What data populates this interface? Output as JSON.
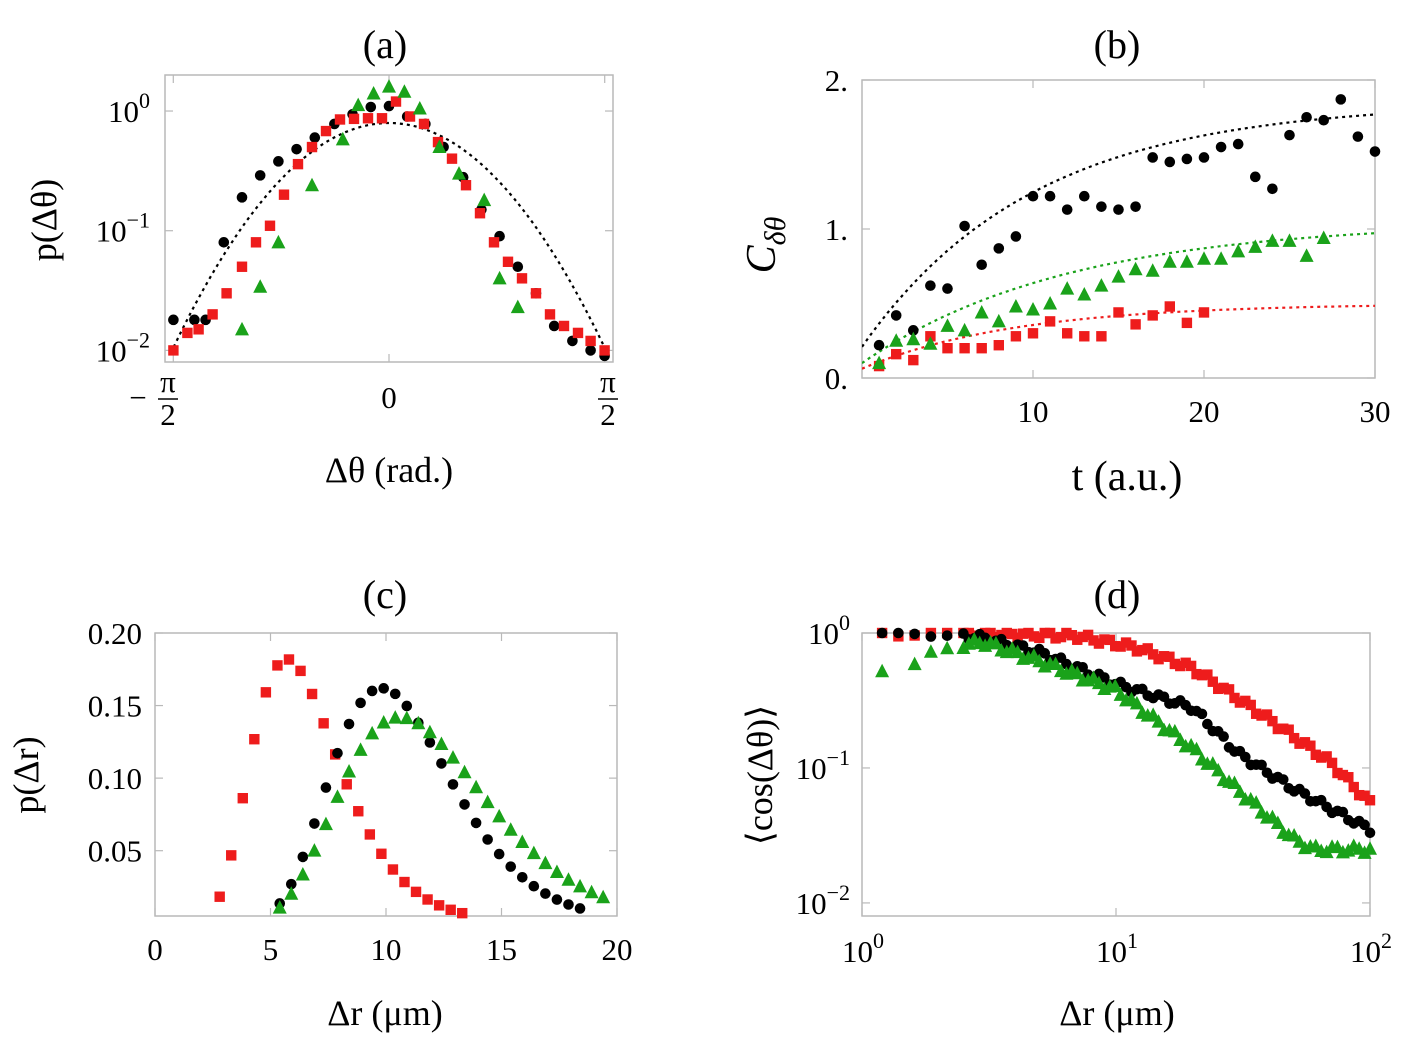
{
  "colors": {
    "black": "#000000",
    "red": "#ee1c1c",
    "green": "#1aa21a"
  },
  "chart_data": [
    {
      "type": "scatter",
      "panel": "(a)",
      "title": "(a)",
      "xlabel": "Δθ (rad.)",
      "ylabel": "p(Δθ)",
      "yscale": "log",
      "xlim": [
        -1.6,
        1.6
      ],
      "ylim": [
        0.008,
        2.0
      ],
      "xticks": [
        "−π/2",
        "0",
        "π/2"
      ],
      "yticks": [
        "10^0",
        "10^-1",
        "10^-2"
      ],
      "fit_curve": "dotted black parabola on log scale",
      "series": [
        {
          "marker": "circle",
          "color": "black",
          "x": [
            -1.54,
            -1.39,
            -1.31,
            -1.18,
            -1.05,
            -0.92,
            -0.79,
            -0.66,
            -0.53,
            -0.39,
            -0.26,
            -0.13,
            0,
            0.13,
            0.26,
            0.39,
            0.53,
            0.66,
            0.79,
            0.92,
            1.05,
            1.18,
            1.31,
            1.44,
            1.54
          ],
          "y": [
            0.018,
            0.018,
            0.018,
            0.08,
            0.19,
            0.29,
            0.38,
            0.48,
            0.6,
            0.78,
            0.94,
            1.08,
            1.1,
            0.9,
            0.78,
            0.5,
            0.28,
            0.15,
            0.09,
            0.05,
            0.03,
            0.016,
            0.012,
            0.01,
            0.009
          ]
        },
        {
          "marker": "square",
          "color": "red",
          "x": [
            -1.54,
            -1.44,
            -1.36,
            -1.26,
            -1.16,
            -1.05,
            -0.95,
            -0.85,
            -0.75,
            -0.65,
            -0.55,
            -0.45,
            -0.35,
            -0.25,
            -0.15,
            -0.05,
            0.05,
            0.15,
            0.25,
            0.35,
            0.45,
            0.55,
            0.65,
            0.75,
            0.85,
            0.95,
            1.05,
            1.15,
            1.25,
            1.35,
            1.44,
            1.54
          ],
          "y": [
            0.01,
            0.014,
            0.015,
            0.02,
            0.03,
            0.05,
            0.08,
            0.11,
            0.2,
            0.36,
            0.5,
            0.68,
            0.85,
            0.86,
            0.87,
            0.87,
            1.2,
            0.9,
            0.78,
            0.55,
            0.4,
            0.24,
            0.14,
            0.08,
            0.055,
            0.04,
            0.03,
            0.02,
            0.016,
            0.014,
            0.012,
            0.01
          ]
        },
        {
          "marker": "triangle",
          "color": "green",
          "x": [
            -1.05,
            -0.92,
            -0.79,
            -0.55,
            -0.33,
            -0.22,
            -0.11,
            0,
            0.11,
            0.22,
            0.36,
            0.5,
            0.68,
            0.79,
            0.92
          ],
          "y": [
            0.015,
            0.034,
            0.08,
            0.24,
            0.58,
            1.12,
            1.4,
            1.6,
            1.45,
            1.05,
            0.5,
            0.3,
            0.18,
            0.04,
            0.023
          ]
        }
      ]
    },
    {
      "type": "scatter",
      "panel": "(b)",
      "title": "(b)",
      "xlabel": "t (a.u.)",
      "ylabel": "C_δθ",
      "xlim": [
        0,
        30
      ],
      "ylim": [
        0,
        2
      ],
      "xticks": [
        "10",
        "20",
        "30"
      ],
      "yticks": [
        "0.",
        "1.",
        "2."
      ],
      "series": [
        {
          "marker": "circle",
          "color": "black",
          "x": [
            1,
            2,
            3,
            4,
            5,
            6,
            7,
            8,
            9,
            10,
            11,
            12,
            13,
            14,
            15,
            16,
            17,
            18,
            19,
            20,
            21,
            22,
            23,
            24,
            25,
            26,
            27,
            28,
            29,
            30
          ],
          "y": [
            0.22,
            0.42,
            0.32,
            0.62,
            0.6,
            1.02,
            0.76,
            0.87,
            0.95,
            1.22,
            1.22,
            1.13,
            1.22,
            1.15,
            1.13,
            1.15,
            1.48,
            1.45,
            1.47,
            1.48,
            1.55,
            1.57,
            1.35,
            1.27,
            1.63,
            1.75,
            1.73,
            1.87,
            1.62,
            1.52
          ]
        },
        {
          "marker": "square",
          "color": "red",
          "x": [
            1,
            2,
            3,
            4,
            5,
            6,
            7,
            8,
            9,
            10,
            11,
            12,
            13,
            14,
            15,
            16,
            17,
            18,
            19,
            20
          ],
          "y": [
            0.08,
            0.16,
            0.12,
            0.28,
            0.2,
            0.2,
            0.2,
            0.22,
            0.28,
            0.3,
            0.38,
            0.3,
            0.28,
            0.28,
            0.44,
            0.36,
            0.42,
            0.48,
            0.37,
            0.44
          ]
        },
        {
          "marker": "triangle",
          "color": "green",
          "x": [
            1,
            2,
            3,
            4,
            5,
            6,
            7,
            8,
            9,
            10,
            11,
            12,
            13,
            14,
            15,
            16,
            17,
            18,
            19,
            20,
            21,
            22,
            23,
            24,
            25,
            26,
            27
          ],
          "y": [
            0.1,
            0.25,
            0.26,
            0.23,
            0.35,
            0.32,
            0.44,
            0.38,
            0.48,
            0.46,
            0.5,
            0.6,
            0.56,
            0.62,
            0.68,
            0.73,
            0.72,
            0.78,
            0.78,
            0.8,
            0.8,
            0.85,
            0.88,
            0.92,
            0.92,
            0.82,
            0.94
          ]
        }
      ],
      "fits": [
        {
          "color": "black",
          "style": "dotted",
          "asymptote": 1.85,
          "tau": 10
        },
        {
          "color": "green",
          "style": "dotted",
          "asymptote": 1.05,
          "tau": 12
        },
        {
          "color": "red",
          "style": "dotted",
          "asymptote": 0.5,
          "tau": 9
        }
      ]
    },
    {
      "type": "scatter",
      "panel": "(c)",
      "title": "(c)",
      "xlabel": "Δr (μm)",
      "ylabel": "p(Δr)",
      "xlim": [
        0,
        20
      ],
      "ylim": [
        0.005,
        0.2
      ],
      "xticks": [
        "0",
        "5",
        "10",
        "15",
        "20"
      ],
      "yticks": [
        "0.20",
        "0.15",
        "0.10",
        "0.05"
      ],
      "series": [
        {
          "marker": "square",
          "color": "red",
          "mean": 5.7,
          "width": 1.8,
          "peak": 0.182,
          "xrange": [
            1.3,
            13.3
          ]
        },
        {
          "marker": "circle",
          "color": "black",
          "mean": 9.8,
          "width": 2.5,
          "peak": 0.162,
          "xrange": [
            5.4,
            18.5
          ]
        },
        {
          "marker": "triangle",
          "color": "green",
          "mean": 10.6,
          "width": 3.0,
          "peak": 0.142,
          "xrange": [
            5.4,
            19.5
          ]
        }
      ]
    },
    {
      "type": "scatter",
      "panel": "(d)",
      "title": "(d)",
      "xlabel": "Δr (μm)",
      "ylabel": "⟨cos(Δθ)⟩",
      "xscale": "log",
      "yscale": "log",
      "xlim": [
        1,
        100
      ],
      "ylim": [
        0.008,
        1.0
      ],
      "xticks": [
        "10^0",
        "10^1",
        "10^2"
      ],
      "yticks": [
        "10^0",
        "10^-1",
        "10^-2"
      ],
      "series": [
        {
          "marker": "square",
          "color": "red",
          "knots_x": [
            1.2,
            2,
            4,
            7,
            12,
            20,
            40,
            70,
            100
          ],
          "knots_y": [
            1.0,
            1.0,
            0.98,
            0.95,
            0.78,
            0.55,
            0.23,
            0.11,
            0.055
          ]
        },
        {
          "marker": "circle",
          "color": "black",
          "knots_x": [
            1.2,
            2,
            3,
            5,
            10,
            20,
            30,
            50,
            70,
            100
          ],
          "knots_y": [
            1.0,
            1.0,
            0.92,
            0.72,
            0.42,
            0.28,
            0.13,
            0.07,
            0.05,
            0.035
          ]
        },
        {
          "marker": "triangle",
          "color": "green",
          "knots_x": [
            1.2,
            1.6,
            2,
            3,
            5,
            10,
            20,
            30,
            50,
            60,
            100
          ],
          "knots_y": [
            0.55,
            0.55,
            0.78,
            0.86,
            0.62,
            0.38,
            0.14,
            0.07,
            0.03,
            0.025,
            0.025
          ]
        }
      ]
    }
  ]
}
